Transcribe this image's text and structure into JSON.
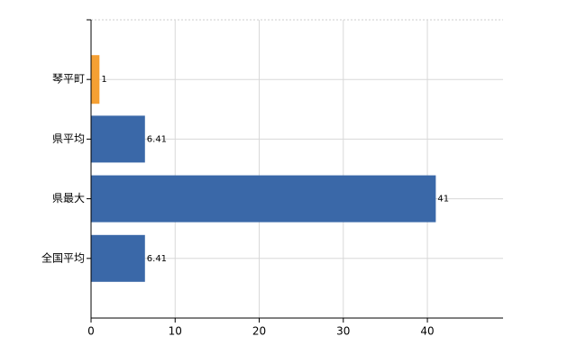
{
  "chart_data": {
    "type": "barh",
    "categories": [
      "琴平町",
      "県平均",
      "県最大",
      "全国平均"
    ],
    "values": [
      1,
      6.41,
      41,
      6.41
    ],
    "colors": [
      "#f5a033",
      "#3a68a8",
      "#3a68a8",
      "#3a68a8"
    ],
    "xlim": [
      0,
      49
    ],
    "xticks": [
      0,
      10,
      20,
      30,
      40
    ],
    "grid": true
  }
}
